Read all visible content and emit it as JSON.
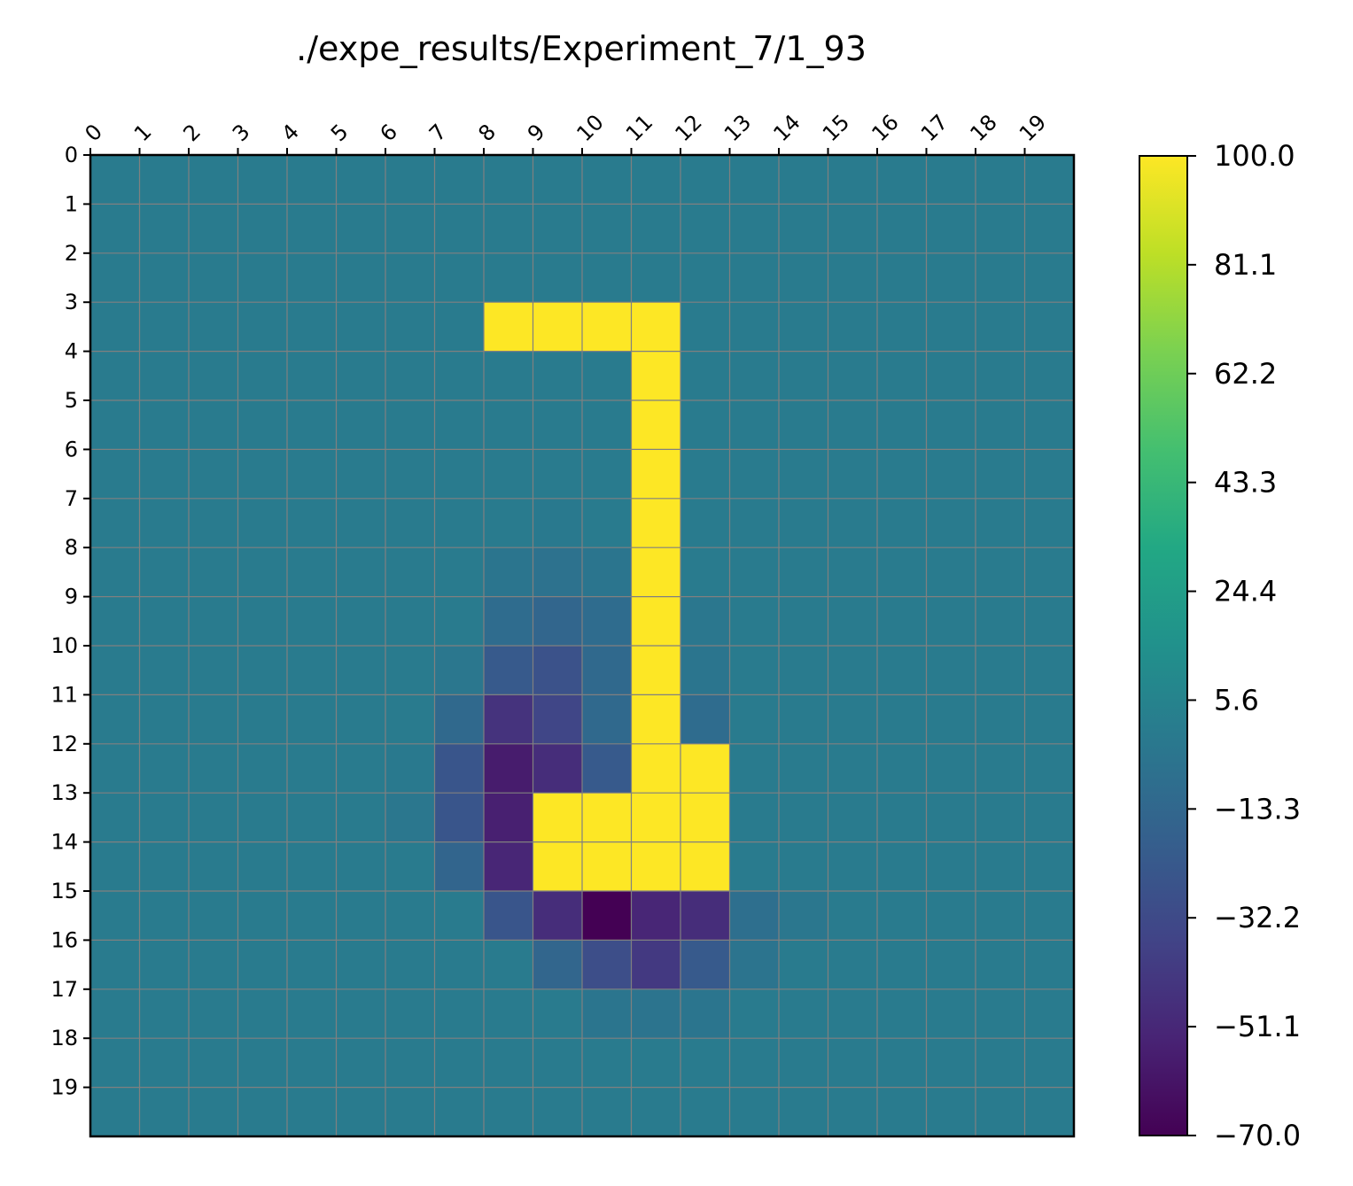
{
  "chart_data": {
    "type": "heatmap",
    "title": "./expe_results/Experiment_7/1_93",
    "x_ticks": [
      "0",
      "1",
      "2",
      "3",
      "4",
      "5",
      "6",
      "7",
      "8",
      "9",
      "10",
      "11",
      "12",
      "13",
      "14",
      "15",
      "16",
      "17",
      "18",
      "19"
    ],
    "y_ticks": [
      "0",
      "1",
      "2",
      "3",
      "4",
      "5",
      "6",
      "7",
      "8",
      "9",
      "10",
      "11",
      "12",
      "13",
      "14",
      "15",
      "16",
      "17",
      "18",
      "19"
    ],
    "x_axis_position": "top",
    "grid": true,
    "colormap": "viridis",
    "vmin": -70.0,
    "vmax": 100.0,
    "colorbar_ticks": [
      "100.0",
      "81.1",
      "62.2",
      "43.3",
      "24.4",
      "5.6",
      "−13.3",
      "−32.2",
      "−51.1",
      "−70.0"
    ],
    "values": [
      [
        0,
        0,
        0,
        0,
        0,
        0,
        0,
        0,
        0,
        0,
        0,
        0,
        0,
        0,
        0,
        0,
        0,
        0,
        0,
        0
      ],
      [
        0,
        0,
        0,
        0,
        0,
        0,
        0,
        0,
        0,
        0,
        0,
        0,
        0,
        0,
        0,
        0,
        0,
        0,
        0,
        0
      ],
      [
        0,
        0,
        0,
        0,
        0,
        0,
        0,
        0,
        0,
        0,
        0,
        0,
        0,
        0,
        0,
        0,
        0,
        0,
        0,
        0
      ],
      [
        0,
        0,
        0,
        0,
        0,
        0,
        0,
        0,
        100,
        100,
        100,
        100,
        0,
        0,
        0,
        0,
        0,
        0,
        0,
        0
      ],
      [
        0,
        0,
        0,
        0,
        0,
        0,
        0,
        0,
        0,
        0,
        0,
        100,
        0,
        0,
        0,
        0,
        0,
        0,
        0,
        0
      ],
      [
        0,
        0,
        0,
        0,
        0,
        0,
        0,
        0,
        0,
        0,
        0,
        100,
        0,
        0,
        0,
        0,
        0,
        0,
        0,
        0
      ],
      [
        0,
        0,
        0,
        0,
        0,
        0,
        0,
        0,
        0,
        0,
        0,
        100,
        0,
        0,
        0,
        0,
        0,
        0,
        0,
        0
      ],
      [
        0,
        0,
        0,
        0,
        0,
        0,
        0,
        0,
        0,
        -1,
        0,
        100,
        0,
        0,
        0,
        0,
        0,
        0,
        0,
        0
      ],
      [
        0,
        0,
        0,
        0,
        0,
        0,
        0,
        0,
        -4,
        -6,
        -4,
        100,
        0,
        0,
        0,
        0,
        0,
        0,
        0,
        0
      ],
      [
        0,
        0,
        0,
        0,
        0,
        0,
        0,
        0,
        -10,
        -14,
        -10,
        100,
        -3,
        0,
        0,
        0,
        0,
        0,
        0,
        0
      ],
      [
        0,
        0,
        0,
        0,
        0,
        0,
        0,
        -3,
        -22,
        -27,
        -12,
        100,
        -4,
        0,
        0,
        0,
        0,
        0,
        0,
        0
      ],
      [
        0,
        0,
        0,
        0,
        0,
        0,
        0,
        -12,
        -45,
        -35,
        -12,
        100,
        -10,
        0,
        0,
        0,
        0,
        0,
        0,
        0
      ],
      [
        0,
        0,
        0,
        0,
        0,
        0,
        -1,
        -25,
        -57,
        -48,
        -22,
        100,
        100,
        0,
        0,
        0,
        0,
        0,
        0,
        0
      ],
      [
        0,
        0,
        0,
        0,
        0,
        0,
        -3,
        -25,
        -55,
        100,
        100,
        100,
        100,
        0,
        0,
        0,
        0,
        0,
        0,
        0
      ],
      [
        0,
        0,
        0,
        0,
        0,
        0,
        0,
        -15,
        -52,
        100,
        100,
        100,
        100,
        0,
        0,
        0,
        0,
        0,
        0,
        0
      ],
      [
        0,
        0,
        0,
        0,
        0,
        0,
        0,
        0,
        -25,
        -48,
        -70,
        -52,
        -48,
        -8,
        -3,
        0,
        0,
        0,
        0,
        0
      ],
      [
        0,
        0,
        0,
        0,
        0,
        0,
        0,
        0,
        0,
        -14,
        -30,
        -42,
        -22,
        -5,
        0,
        0,
        0,
        0,
        0,
        0
      ],
      [
        0,
        0,
        0,
        0,
        0,
        0,
        0,
        0,
        0,
        0,
        -4,
        -5,
        -4,
        0,
        0,
        0,
        0,
        0,
        0,
        0
      ],
      [
        0,
        0,
        0,
        0,
        0,
        0,
        0,
        0,
        0,
        0,
        0,
        0,
        0,
        0,
        0,
        0,
        0,
        0,
        0,
        0
      ],
      [
        0,
        0,
        0,
        0,
        0,
        0,
        0,
        0,
        0,
        0,
        0,
        0,
        0,
        0,
        0,
        0,
        0,
        0,
        0,
        0
      ]
    ]
  }
}
